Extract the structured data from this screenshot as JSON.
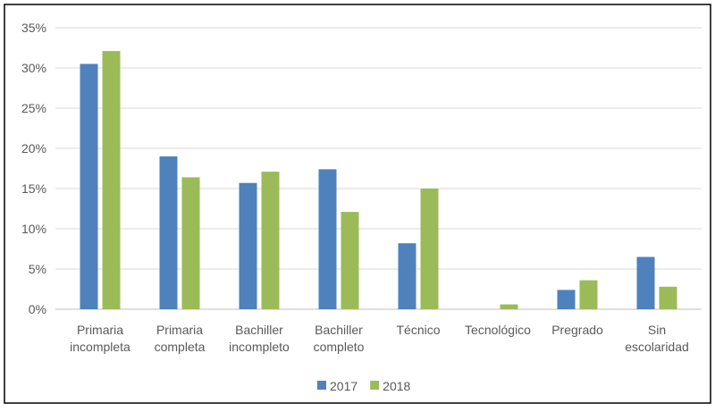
{
  "chart_data": {
    "type": "bar",
    "categories": [
      "Primaria incompleta",
      "Primaria completa",
      "Bachiller incompleto",
      "Bachiller completo",
      "Técnico",
      "Tecnológico",
      "Pregrado",
      "Sin escolaridad"
    ],
    "series": [
      {
        "name": "2017",
        "color": "#4f81bd",
        "values": [
          30.5,
          19,
          15.7,
          17.4,
          8.2,
          0,
          2.4,
          6.5
        ]
      },
      {
        "name": "2018",
        "color": "#9bbb59",
        "values": [
          32.1,
          16.4,
          17.1,
          12.1,
          15,
          0.6,
          3.6,
          2.8
        ]
      }
    ],
    "ylim": [
      0,
      35
    ],
    "yticks": [
      {
        "value": 0,
        "label": "0%"
      },
      {
        "value": 5,
        "label": "5%"
      },
      {
        "value": 10,
        "label": "10%"
      },
      {
        "value": 15,
        "label": "15%"
      },
      {
        "value": 20,
        "label": "20%"
      },
      {
        "value": 25,
        "label": "25%"
      },
      {
        "value": 30,
        "label": "30%"
      },
      {
        "value": 35,
        "label": "35%"
      }
    ],
    "grid": true,
    "legend": "bottom"
  }
}
